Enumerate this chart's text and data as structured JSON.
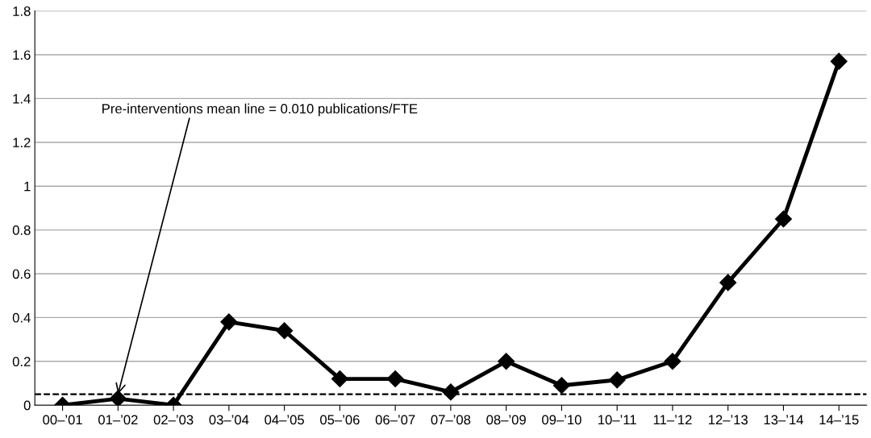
{
  "chart_data": {
    "type": "line",
    "categories": [
      "00–’01",
      "01–’02",
      "02–’03",
      "03–’04",
      "04–’05",
      "05–’06",
      "06–’07",
      "07–’08",
      "08–’09",
      "09–’10",
      "10–’11",
      "11–’12",
      "12–’13",
      "13–’14",
      "14–’15"
    ],
    "series": [
      {
        "color": "#000000",
        "values": [
          0,
          0.03,
          0,
          0.38,
          0.34,
          0.12,
          0.12,
          0.06,
          0.2,
          0.09,
          0.115,
          0.2,
          0.56,
          0.85,
          1.57
        ]
      }
    ],
    "ylim": [
      0,
      1.8
    ],
    "yticks": [
      0,
      0.2,
      0.4,
      0.6,
      0.8,
      1,
      1.2,
      1.4,
      1.6,
      1.8
    ],
    "grid": "y",
    "marker": "diamond",
    "line_style": "solid",
    "ref_lines": [
      {
        "axis": "y",
        "value": 0.05,
        "color": "#000000",
        "line_style": "dashed"
      }
    ],
    "annotations": [
      {
        "text": "Pre-interventions mean line = 0.010 publications/FTE",
        "x": "01–’02",
        "y": 0.05
      }
    ]
  }
}
